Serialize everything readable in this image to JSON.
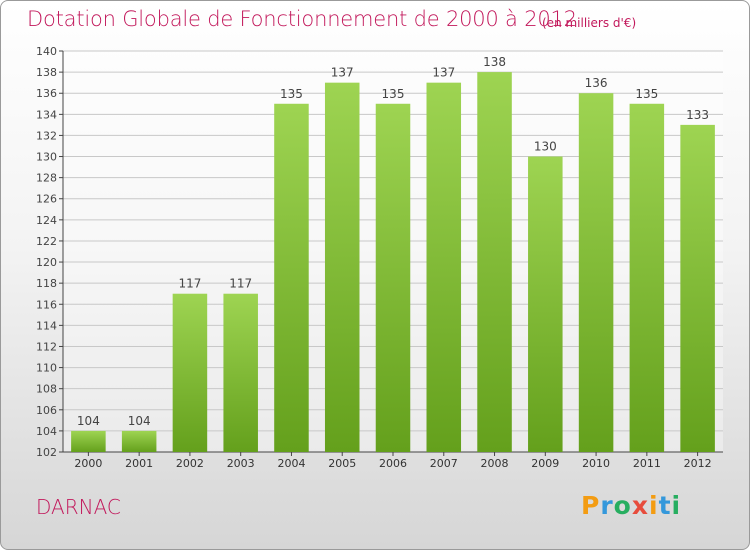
{
  "title": "Dotation Globale de Fonctionnement de 2000 à 2012",
  "unit_note": "(en milliers d'€)",
  "commune": "DARNAC",
  "logo_text": "Proxiti",
  "colors": {
    "title": "#c2185b",
    "bar_top": "#9ed452",
    "bar_bottom": "#64a01c",
    "grid": "#c8c8c8"
  },
  "chart_data": {
    "type": "bar",
    "title": "Dotation Globale de Fonctionnement de 2000 à 2012",
    "subtitle": "(en milliers d'€)",
    "xlabel": "",
    "ylabel": "",
    "categories": [
      "2000",
      "2001",
      "2002",
      "2003",
      "2004",
      "2005",
      "2006",
      "2007",
      "2008",
      "2009",
      "2010",
      "2011",
      "2012"
    ],
    "values": [
      104,
      104,
      117,
      117,
      135,
      137,
      135,
      137,
      138,
      130,
      136,
      135,
      133
    ],
    "ylim": [
      102,
      140
    ],
    "ytick_step": 2,
    "grid": true,
    "data_labels": true
  }
}
